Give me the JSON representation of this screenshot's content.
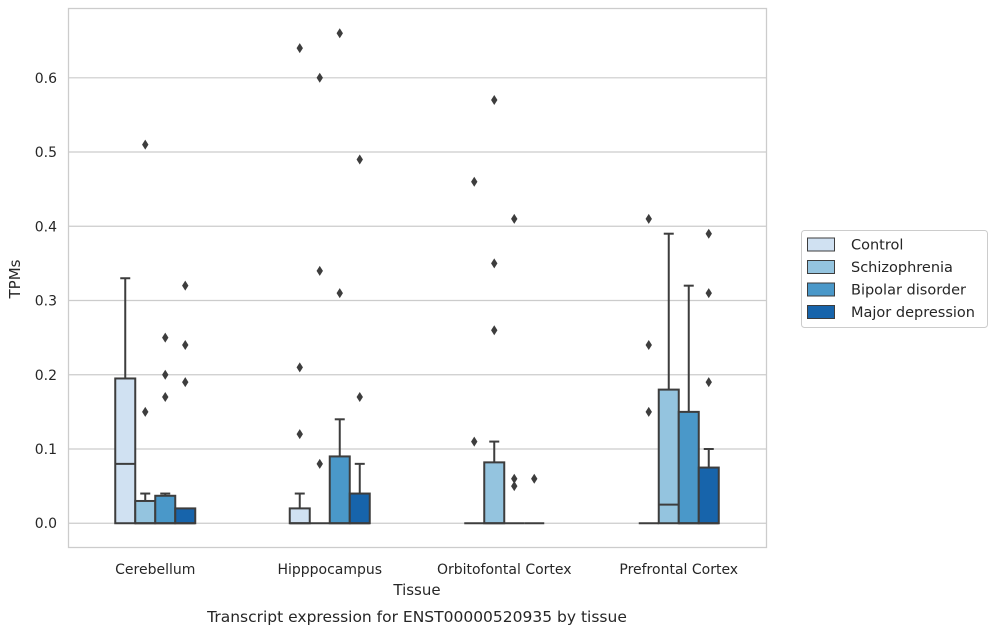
{
  "chart_data": {
    "type": "boxplot",
    "title": "",
    "caption": "Transcript expression for ENST00000520935 by tissue",
    "xlabel": "Tissue",
    "ylabel": "TPMs",
    "ylim": [
      -0.032,
      0.694
    ],
    "yticks": [
      "0.0",
      "0.1",
      "0.2",
      "0.3",
      "0.4",
      "0.5",
      "0.6"
    ],
    "grid": "horizontal",
    "legend_position": "right",
    "categories": [
      "Cerebellum",
      "Hipppocampus",
      "Orbitofontal Cortex",
      "Prefrontal Cortex"
    ],
    "series": [
      {
        "name": "Control",
        "color": "#d0e1f2",
        "boxes": [
          {
            "q1": 0.0,
            "median": 0.08,
            "q3": 0.195,
            "whisker_low": 0.0,
            "whisker_high": 0.33,
            "outliers": []
          },
          {
            "q1": 0.0,
            "median": 0.0,
            "q3": 0.02,
            "whisker_low": 0.0,
            "whisker_high": 0.04,
            "outliers": [
              0.12,
              0.21,
              0.64
            ]
          },
          {
            "q1": 0.0,
            "median": 0.0,
            "q3": 0.0,
            "whisker_low": 0.0,
            "whisker_high": 0.0,
            "outliers": [
              0.11,
              0.46
            ]
          },
          {
            "q1": 0.0,
            "median": 0.0,
            "q3": 0.0,
            "whisker_low": 0.0,
            "whisker_high": 0.0,
            "outliers": [
              0.15,
              0.24,
              0.41
            ]
          }
        ]
      },
      {
        "name": "Schizophrenia",
        "color": "#94c4df",
        "boxes": [
          {
            "q1": 0.0,
            "median": 0.0,
            "q3": 0.03,
            "whisker_low": 0.0,
            "whisker_high": 0.04,
            "outliers": [
              0.15,
              0.51
            ]
          },
          {
            "q1": 0.0,
            "median": 0.0,
            "q3": 0.0,
            "whisker_low": 0.0,
            "whisker_high": 0.0,
            "outliers": [
              0.08,
              0.34,
              0.6
            ]
          },
          {
            "q1": 0.0,
            "median": 0.0,
            "q3": 0.082,
            "whisker_low": 0.0,
            "whisker_high": 0.11,
            "outliers": [
              0.26,
              0.35,
              0.57
            ]
          },
          {
            "q1": 0.0,
            "median": 0.025,
            "q3": 0.18,
            "whisker_low": 0.0,
            "whisker_high": 0.39,
            "outliers": []
          }
        ]
      },
      {
        "name": "Bipolar disorder",
        "color": "#4a98c9",
        "boxes": [
          {
            "q1": 0.0,
            "median": 0.0,
            "q3": 0.037,
            "whisker_low": 0.0,
            "whisker_high": 0.04,
            "outliers": [
              0.17,
              0.2,
              0.25
            ]
          },
          {
            "q1": 0.0,
            "median": 0.0,
            "q3": 0.09,
            "whisker_low": 0.0,
            "whisker_high": 0.14,
            "outliers": [
              0.31,
              0.66
            ]
          },
          {
            "q1": 0.0,
            "median": 0.0,
            "q3": 0.0,
            "whisker_low": 0.0,
            "whisker_high": 0.0,
            "outliers": [
              0.05,
              0.06,
              0.41
            ]
          },
          {
            "q1": 0.0,
            "median": 0.0,
            "q3": 0.15,
            "whisker_low": 0.0,
            "whisker_high": 0.32,
            "outliers": []
          }
        ]
      },
      {
        "name": "Major depression",
        "color": "#1764ab",
        "boxes": [
          {
            "q1": 0.0,
            "median": 0.0,
            "q3": 0.02,
            "whisker_low": 0.0,
            "whisker_high": 0.02,
            "outliers": [
              0.19,
              0.24,
              0.32
            ]
          },
          {
            "q1": 0.0,
            "median": 0.0,
            "q3": 0.04,
            "whisker_low": 0.0,
            "whisker_high": 0.08,
            "outliers": [
              0.17,
              0.49
            ]
          },
          {
            "q1": 0.0,
            "median": 0.0,
            "q3": 0.0,
            "whisker_low": 0.0,
            "whisker_high": 0.0,
            "outliers": [
              0.06
            ]
          },
          {
            "q1": 0.0,
            "median": 0.0,
            "q3": 0.075,
            "whisker_low": 0.0,
            "whisker_high": 0.1,
            "outliers": [
              0.19,
              0.31,
              0.39
            ]
          }
        ]
      }
    ]
  }
}
